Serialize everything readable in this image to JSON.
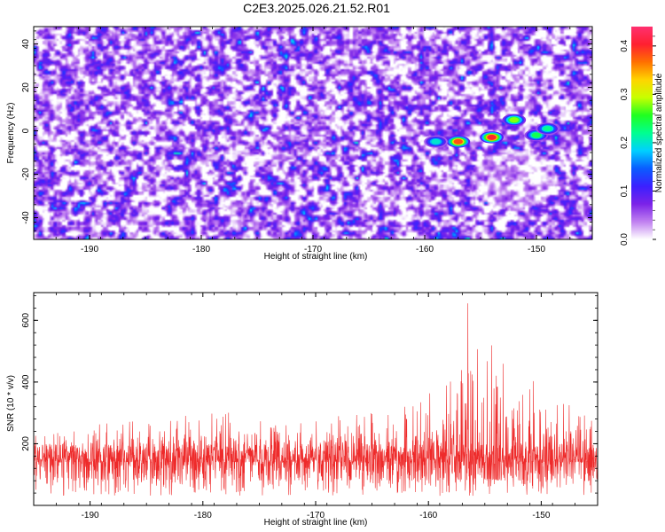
{
  "title": "C2E3.2025.026.21.52.R01",
  "chart_data": [
    {
      "type": "heatmap",
      "xlabel": "Height of straight line (km)",
      "ylabel": "Frequency (Hz)",
      "xlim": [
        -195,
        -145
      ],
      "ylim": [
        -50,
        48
      ],
      "xticks": [
        -190,
        -180,
        -170,
        -160,
        -150
      ],
      "yticks": [
        40,
        20,
        0,
        -20,
        -40
      ],
      "colorbar": {
        "label": "Normalized spectral amplitude",
        "range": [
          0.0,
          0.44
        ],
        "ticks": [
          "0.0",
          "0.1",
          "0.2",
          "0.3",
          "0.4"
        ],
        "colors": [
          "#ffffff",
          "#c080f0",
          "#7b22e8",
          "#3b20ff",
          "#0a5cff",
          "#00d0ff",
          "#00ff90",
          "#20ff20",
          "#c8ff00",
          "#ffd400",
          "#ff7000",
          "#ff2030",
          "#ff3070"
        ]
      },
      "features": [
        {
          "x": -157,
          "y": -5,
          "value": 0.38
        },
        {
          "x": -154,
          "y": -3,
          "value": 0.4
        },
        {
          "x": -152,
          "y": 5,
          "value": 0.28
        },
        {
          "x": -150,
          "y": -2,
          "value": 0.24
        },
        {
          "x": -149,
          "y": 1,
          "value": 0.22
        },
        {
          "x": -159,
          "y": -5,
          "value": 0.2
        }
      ]
    },
    {
      "type": "line",
      "xlabel": "Height of straight line (km)",
      "ylabel": "SNR (10 * v/v)",
      "xlim": [
        -195,
        -145
      ],
      "ylim": [
        0,
        690
      ],
      "xticks": [
        -190,
        -180,
        -170,
        -160,
        -150
      ],
      "yticks": [
        200,
        400,
        600
      ],
      "color": "#ee2a2a",
      "baseline": 140,
      "envelope": [
        {
          "x": -195,
          "y": 230
        },
        {
          "x": -190,
          "y": 260
        },
        {
          "x": -185,
          "y": 290
        },
        {
          "x": -180,
          "y": 300
        },
        {
          "x": -175,
          "y": 310
        },
        {
          "x": -170,
          "y": 300
        },
        {
          "x": -165,
          "y": 310
        },
        {
          "x": -162,
          "y": 330
        },
        {
          "x": -159,
          "y": 380
        },
        {
          "x": -158,
          "y": 440
        },
        {
          "x": -157,
          "y": 560
        },
        {
          "x": -156.5,
          "y": 690
        },
        {
          "x": -156,
          "y": 600
        },
        {
          "x": -155,
          "y": 470
        },
        {
          "x": -154,
          "y": 560
        },
        {
          "x": -153,
          "y": 450
        },
        {
          "x": -152,
          "y": 420
        },
        {
          "x": -150,
          "y": 430
        },
        {
          "x": -148,
          "y": 330
        },
        {
          "x": -145,
          "y": 300
        }
      ]
    }
  ]
}
